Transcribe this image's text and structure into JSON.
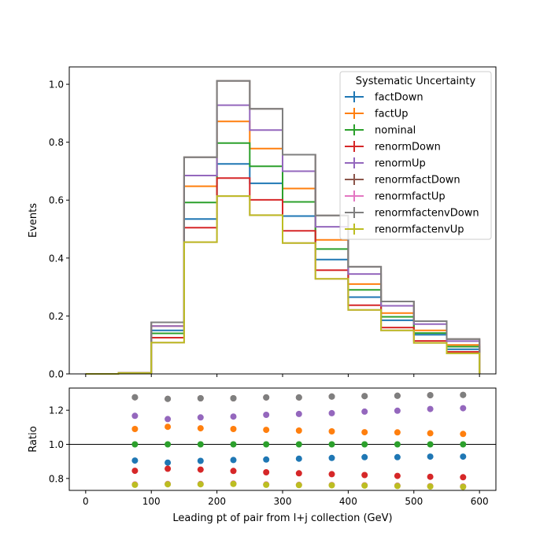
{
  "chart_data": [
    {
      "type": "line",
      "drawstyle": "steps",
      "ylabel": "Events",
      "xlim": [
        -25,
        625
      ],
      "ylim": [
        0,
        1.06
      ],
      "yticks": [
        0.0,
        0.2,
        0.4,
        0.6,
        0.8,
        1.0
      ],
      "ytick_labels": [
        "0.0",
        "0.2",
        "0.4",
        "0.6",
        "0.8",
        "1.0"
      ],
      "bin_edges": [
        0,
        50,
        100,
        150,
        200,
        250,
        300,
        350,
        400,
        450,
        500,
        550,
        600
      ],
      "legend": {
        "title": "Systematic Uncertainty",
        "placement": "upper right"
      },
      "series": [
        {
          "name": "factDown",
          "color": "#1f77b4",
          "values": [
            0.0,
            0.003,
            0.15,
            0.535,
            0.725,
            0.658,
            0.545,
            0.395,
            0.265,
            0.185,
            0.135,
            0.085
          ]
        },
        {
          "name": "factUp",
          "color": "#ff7f0e",
          "values": [
            0.0,
            0.003,
            0.165,
            0.648,
            0.872,
            0.778,
            0.64,
            0.463,
            0.31,
            0.21,
            0.15,
            0.1
          ]
        },
        {
          "name": "nominal",
          "color": "#2ca02c",
          "values": [
            0.0,
            0.003,
            0.14,
            0.592,
            0.797,
            0.717,
            0.594,
            0.431,
            0.29,
            0.197,
            0.141,
            0.094
          ]
        },
        {
          "name": "renormDown",
          "color": "#d62728",
          "values": [
            0.0,
            0.003,
            0.125,
            0.505,
            0.676,
            0.601,
            0.494,
            0.358,
            0.237,
            0.16,
            0.114,
            0.076
          ]
        },
        {
          "name": "renormUp",
          "color": "#9467bd",
          "values": [
            0.0,
            0.003,
            0.165,
            0.685,
            0.928,
            0.842,
            0.7,
            0.508,
            0.345,
            0.235,
            0.172,
            0.113
          ]
        },
        {
          "name": "renormfactDown",
          "color": "#8c564b",
          "values": [
            0.0,
            0.003,
            0.178,
            0.748,
            1.012,
            0.915,
            0.757,
            0.547,
            0.37,
            0.25,
            0.182,
            0.12
          ]
        },
        {
          "name": "renormfactUp",
          "color": "#e377c2",
          "values": [
            0.0,
            0.003,
            0.108,
            0.455,
            0.614,
            0.548,
            0.452,
            0.328,
            0.221,
            0.15,
            0.107,
            0.071
          ]
        },
        {
          "name": "renormfactenvDown",
          "color": "#7f7f7f",
          "values": [
            0.0,
            0.003,
            0.178,
            0.748,
            1.012,
            0.915,
            0.757,
            0.547,
            0.37,
            0.25,
            0.182,
            0.12
          ]
        },
        {
          "name": "renormfactenvUp",
          "color": "#bcbd22",
          "values": [
            0.0,
            0.003,
            0.108,
            0.455,
            0.614,
            0.548,
            0.452,
            0.328,
            0.221,
            0.15,
            0.107,
            0.071
          ]
        }
      ]
    },
    {
      "type": "scatter",
      "ylabel": "Ratio",
      "xlabel": "Leading pt of pair from l+j collection (GeV)",
      "xlim": [
        -25,
        625
      ],
      "ylim": [
        0.73,
        1.33
      ],
      "xticks": [
        0,
        100,
        200,
        300,
        400,
        500,
        600
      ],
      "xtick_labels": [
        "0",
        "100",
        "200",
        "300",
        "400",
        "500",
        "600"
      ],
      "yticks": [
        0.8,
        1.0,
        1.2
      ],
      "ytick_labels": [
        "0.8",
        "1.0",
        "1.2"
      ],
      "reference_line": 1.0,
      "x": [
        75,
        125,
        175,
        225,
        275,
        325,
        375,
        425,
        475,
        525,
        575
      ],
      "series": [
        {
          "name": "factDown",
          "color": "#1f77b4",
          "values": [
            0.905,
            0.893,
            0.903,
            0.908,
            0.911,
            0.916,
            0.92,
            0.925,
            0.925,
            0.928,
            0.928
          ]
        },
        {
          "name": "factUp",
          "color": "#ff7f0e",
          "values": [
            1.09,
            1.103,
            1.094,
            1.09,
            1.085,
            1.081,
            1.076,
            1.071,
            1.07,
            1.065,
            1.061
          ]
        },
        {
          "name": "nominal",
          "color": "#2ca02c",
          "values": [
            1.0,
            1.0,
            1.0,
            1.0,
            1.0,
            1.0,
            1.0,
            1.0,
            1.0,
            1.0,
            1.0
          ]
        },
        {
          "name": "renormDown",
          "color": "#d62728",
          "values": [
            0.845,
            0.857,
            0.852,
            0.844,
            0.836,
            0.83,
            0.825,
            0.82,
            0.815,
            0.81,
            0.807
          ]
        },
        {
          "name": "renormUp",
          "color": "#9467bd",
          "values": [
            1.167,
            1.148,
            1.158,
            1.163,
            1.173,
            1.178,
            1.183,
            1.192,
            1.197,
            1.207,
            1.212
          ]
        },
        {
          "name": "renormfactDown",
          "color": "#8c564b",
          "values": [
            1.276,
            1.267,
            1.27,
            1.27,
            1.275,
            1.275,
            1.28,
            1.283,
            1.285,
            1.288,
            1.29
          ]
        },
        {
          "name": "renormfactUp",
          "color": "#e377c2",
          "values": [
            0.765,
            0.768,
            0.768,
            0.77,
            0.765,
            0.763,
            0.762,
            0.76,
            0.758,
            0.755,
            0.753
          ]
        },
        {
          "name": "renormfactenvDown",
          "color": "#7f7f7f",
          "values": [
            1.276,
            1.267,
            1.27,
            1.27,
            1.275,
            1.275,
            1.28,
            1.283,
            1.285,
            1.288,
            1.29
          ]
        },
        {
          "name": "renormfactenvUp",
          "color": "#bcbd22",
          "values": [
            0.763,
            0.766,
            0.766,
            0.768,
            0.763,
            0.761,
            0.76,
            0.758,
            0.756,
            0.753,
            0.751
          ]
        }
      ]
    }
  ]
}
